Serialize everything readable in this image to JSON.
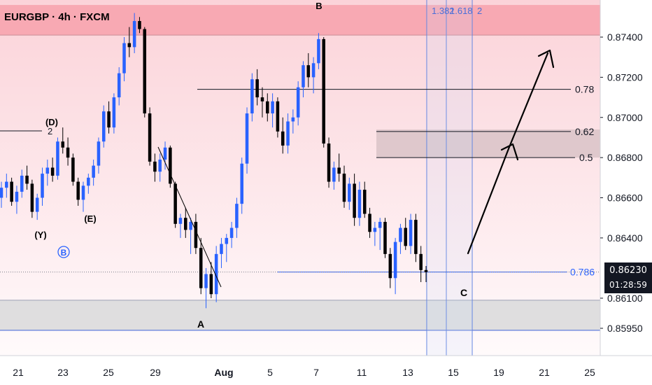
{
  "chart_data": {
    "type": "candlestick",
    "title": "EURGBP · 4h · FXCM",
    "price_axis": {
      "ticks": [
        "0.87400",
        "0.87200",
        "0.87000",
        "0.86800",
        "0.86600",
        "0.86400",
        "0.86100",
        "0.85950"
      ],
      "tick_values": [
        0.874,
        0.872,
        0.87,
        0.868,
        0.866,
        0.864,
        0.861,
        0.8595
      ],
      "range": [
        0.8585,
        0.8755
      ]
    },
    "time_axis": {
      "ticks": [
        "21",
        "23",
        "25",
        "29",
        "Aug",
        "5",
        "7",
        "11",
        "13",
        "15",
        "19",
        "21",
        "25"
      ]
    },
    "current_price": {
      "value": 0.8623,
      "label": "0.86230",
      "countdown": "01:28:59"
    },
    "zones": [
      {
        "name": "supply-zone",
        "from": 0.8741,
        "to": 0.8756,
        "color": "#f7a1ab"
      },
      {
        "name": "retracement-zone",
        "from": 0.868,
        "to": 0.8694,
        "color": "#d9c3c7"
      },
      {
        "name": "demand-zone",
        "from": 0.8594,
        "to": 0.8609,
        "color": "#d9d9db"
      }
    ],
    "levels": [
      {
        "label": "0.78",
        "value": 0.8714,
        "color": "#131722"
      },
      {
        "label": "0.62",
        "value": 0.8693,
        "color": "#131722"
      },
      {
        "label": "0.5",
        "value": 0.868,
        "color": "#131722"
      },
      {
        "label": "0.786",
        "value": 0.8623,
        "color": "#2962ff"
      },
      {
        "label": "2",
        "value": 0.8693,
        "color": "#131722"
      }
    ],
    "vertical_lines": [
      {
        "label": "1.382"
      },
      {
        "label": "1.618"
      },
      {
        "label": "2"
      }
    ],
    "wave_labels": [
      "B",
      "(D)",
      "(E)",
      "(Y)",
      "B",
      "A",
      "C"
    ],
    "series": [
      {
        "name": "EURGBP",
        "ohlc": [
          [
            0.866,
            0.8668,
            0.8655,
            0.8665
          ],
          [
            0.8665,
            0.8672,
            0.866,
            0.8668
          ],
          [
            0.8668,
            0.867,
            0.8656,
            0.8658
          ],
          [
            0.8658,
            0.8666,
            0.8652,
            0.8663
          ],
          [
            0.8663,
            0.8674,
            0.866,
            0.8671
          ],
          [
            0.8671,
            0.8676,
            0.8664,
            0.8667
          ],
          [
            0.8667,
            0.8669,
            0.865,
            0.8653
          ],
          [
            0.8653,
            0.8662,
            0.8649,
            0.866
          ],
          [
            0.866,
            0.8675,
            0.8656,
            0.8672
          ],
          [
            0.8672,
            0.8679,
            0.8666,
            0.8675
          ],
          [
            0.8675,
            0.868,
            0.8668,
            0.8671
          ],
          [
            0.8671,
            0.869,
            0.8669,
            0.8688
          ],
          [
            0.8688,
            0.8695,
            0.8682,
            0.8685
          ],
          [
            0.8685,
            0.869,
            0.8676,
            0.868
          ],
          [
            0.868,
            0.8682,
            0.8666,
            0.8668
          ],
          [
            0.8668,
            0.867,
            0.8656,
            0.8659
          ],
          [
            0.8659,
            0.8668,
            0.8653,
            0.8666
          ],
          [
            0.8666,
            0.8672,
            0.8662,
            0.867
          ],
          [
            0.867,
            0.8679,
            0.8666,
            0.8676
          ],
          [
            0.8676,
            0.869,
            0.8672,
            0.8688
          ],
          [
            0.8688,
            0.8706,
            0.8685,
            0.8703
          ],
          [
            0.8703,
            0.8708,
            0.8692,
            0.8695
          ],
          [
            0.8695,
            0.8712,
            0.8692,
            0.871
          ],
          [
            0.871,
            0.8725,
            0.8706,
            0.8722
          ],
          [
            0.8722,
            0.874,
            0.8718,
            0.8737
          ],
          [
            0.8737,
            0.8745,
            0.873,
            0.8735
          ],
          [
            0.8735,
            0.8752,
            0.8732,
            0.8748
          ],
          [
            0.8748,
            0.875,
            0.8742,
            0.8744
          ],
          [
            0.8744,
            0.8745,
            0.87,
            0.8702
          ],
          [
            0.8702,
            0.8705,
            0.8676,
            0.8678
          ],
          [
            0.8678,
            0.8682,
            0.8668,
            0.8673
          ],
          [
            0.8673,
            0.8682,
            0.8668,
            0.8679
          ],
          [
            0.8679,
            0.8688,
            0.8674,
            0.8685
          ],
          [
            0.8685,
            0.8686,
            0.8665,
            0.8667
          ],
          [
            0.8667,
            0.8668,
            0.8645,
            0.8647
          ],
          [
            0.8647,
            0.8652,
            0.864,
            0.865
          ],
          [
            0.865,
            0.8655,
            0.864,
            0.8644
          ],
          [
            0.8644,
            0.865,
            0.8632,
            0.8648
          ],
          [
            0.8648,
            0.8652,
            0.8632,
            0.8635
          ],
          [
            0.8635,
            0.864,
            0.8612,
            0.8615
          ],
          [
            0.8615,
            0.8625,
            0.8605,
            0.8622
          ],
          [
            0.8622,
            0.8628,
            0.861,
            0.8612
          ],
          [
            0.8612,
            0.8636,
            0.8608,
            0.8632
          ],
          [
            0.8632,
            0.864,
            0.8625,
            0.8637
          ],
          [
            0.8637,
            0.8642,
            0.8628,
            0.864
          ],
          [
            0.864,
            0.8648,
            0.8635,
            0.8645
          ],
          [
            0.8645,
            0.866,
            0.864,
            0.8657
          ],
          [
            0.8657,
            0.868,
            0.8652,
            0.8677
          ],
          [
            0.8677,
            0.8705,
            0.8672,
            0.8702
          ],
          [
            0.8702,
            0.8722,
            0.8698,
            0.8719
          ],
          [
            0.8719,
            0.8724,
            0.8706,
            0.871
          ],
          [
            0.871,
            0.8715,
            0.87,
            0.8708
          ],
          [
            0.8708,
            0.8712,
            0.8698,
            0.8702
          ],
          [
            0.8702,
            0.8712,
            0.8695,
            0.8708
          ],
          [
            0.8708,
            0.871,
            0.869,
            0.8693
          ],
          [
            0.8693,
            0.87,
            0.8682,
            0.8686
          ],
          [
            0.8686,
            0.8702,
            0.8682,
            0.8698
          ],
          [
            0.8698,
            0.8704,
            0.8692,
            0.87
          ],
          [
            0.87,
            0.8718,
            0.8696,
            0.8715
          ],
          [
            0.8715,
            0.8728,
            0.871,
            0.8726
          ],
          [
            0.8726,
            0.8732,
            0.8715,
            0.872
          ],
          [
            0.872,
            0.873,
            0.8712,
            0.8727
          ],
          [
            0.8727,
            0.8742,
            0.8724,
            0.8739
          ],
          [
            0.8739,
            0.874,
            0.8685,
            0.8687
          ],
          [
            0.8687,
            0.869,
            0.8665,
            0.8668
          ],
          [
            0.8668,
            0.8678,
            0.8664,
            0.8675
          ],
          [
            0.8675,
            0.8682,
            0.8668,
            0.8672
          ],
          [
            0.8672,
            0.8676,
            0.8655,
            0.8658
          ],
          [
            0.8658,
            0.867,
            0.8654,
            0.8667
          ],
          [
            0.8667,
            0.8672,
            0.8646,
            0.865
          ],
          [
            0.865,
            0.8668,
            0.8646,
            0.8664
          ],
          [
            0.8664,
            0.8668,
            0.865,
            0.8652
          ],
          [
            0.8652,
            0.8655,
            0.864,
            0.8643
          ],
          [
            0.8643,
            0.8648,
            0.8636,
            0.8645
          ],
          [
            0.8645,
            0.865,
            0.8634,
            0.8648
          ],
          [
            0.8648,
            0.865,
            0.863,
            0.8632
          ],
          [
            0.8632,
            0.8635,
            0.8615,
            0.862
          ],
          [
            0.862,
            0.864,
            0.8612,
            0.8638
          ],
          [
            0.8638,
            0.8647,
            0.8632,
            0.8645
          ],
          [
            0.8645,
            0.865,
            0.8634,
            0.8636
          ],
          [
            0.8636,
            0.8652,
            0.8632,
            0.8649
          ],
          [
            0.8649,
            0.8652,
            0.8628,
            0.8632
          ],
          [
            0.8632,
            0.8636,
            0.8618,
            0.8624
          ],
          [
            0.8624,
            0.8626,
            0.8618,
            0.8623
          ]
        ]
      }
    ]
  }
}
